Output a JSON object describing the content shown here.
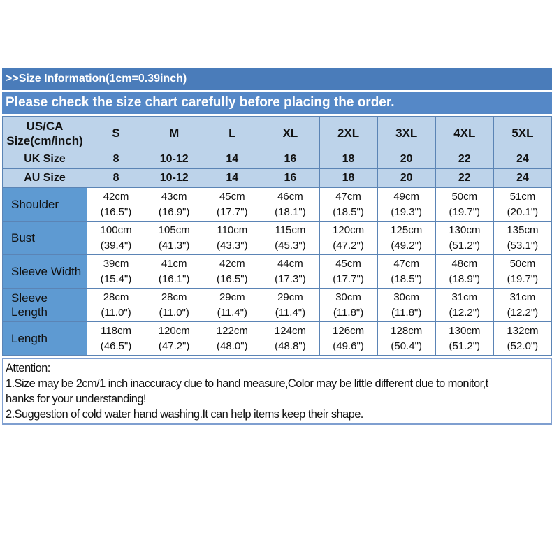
{
  "banners": {
    "title": ">>Size Information(1cm=0.39inch)",
    "subtitle": "Please check the size chart carefully before placing the order."
  },
  "table": {
    "corner_header": {
      "line1": "US/CA",
      "line2": "Size(cm/inch)"
    },
    "size_headers": [
      "S",
      "M",
      "L",
      "XL",
      "2XL",
      "3XL",
      "4XL",
      "5XL"
    ],
    "size_rows": [
      {
        "label": "UK Size",
        "values": [
          "8",
          "10-12",
          "14",
          "16",
          "18",
          "20",
          "22",
          "24"
        ]
      },
      {
        "label": "AU Size",
        "values": [
          "8",
          "10-12",
          "14",
          "16",
          "18",
          "20",
          "22",
          "24"
        ]
      }
    ],
    "measure_rows": [
      {
        "label": "Shoulder",
        "cells": [
          {
            "cm": "42cm",
            "in": "(16.5\")"
          },
          {
            "cm": "43cm",
            "in": "(16.9\")"
          },
          {
            "cm": "45cm",
            "in": "(17.7\")"
          },
          {
            "cm": "46cm",
            "in": "(18.1\")"
          },
          {
            "cm": "47cm",
            "in": "(18.5\")"
          },
          {
            "cm": "49cm",
            "in": "(19.3\")"
          },
          {
            "cm": "50cm",
            "in": "(19.7\")"
          },
          {
            "cm": "51cm",
            "in": "(20.1\")"
          }
        ]
      },
      {
        "label": "Bust",
        "cells": [
          {
            "cm": "100cm",
            "in": "(39.4\")"
          },
          {
            "cm": "105cm",
            "in": "(41.3\")"
          },
          {
            "cm": "110cm",
            "in": "(43.3\")"
          },
          {
            "cm": "115cm",
            "in": "(45.3\")"
          },
          {
            "cm": "120cm",
            "in": "(47.2\")"
          },
          {
            "cm": "125cm",
            "in": "(49.2\")"
          },
          {
            "cm": "130cm",
            "in": "(51.2\")"
          },
          {
            "cm": "135cm",
            "in": "(53.1\")"
          }
        ]
      },
      {
        "label": "Sleeve Width",
        "cells": [
          {
            "cm": "39cm",
            "in": "(15.4\")"
          },
          {
            "cm": "41cm",
            "in": "(16.1\")"
          },
          {
            "cm": "42cm",
            "in": "(16.5\")"
          },
          {
            "cm": "44cm",
            "in": "(17.3\")"
          },
          {
            "cm": "45cm",
            "in": "(17.7\")"
          },
          {
            "cm": "47cm",
            "in": "(18.5\")"
          },
          {
            "cm": "48cm",
            "in": "(18.9\")"
          },
          {
            "cm": "50cm",
            "in": "(19.7\")"
          }
        ]
      },
      {
        "label": "Sleeve Length",
        "cells": [
          {
            "cm": "28cm",
            "in": "(11.0\")"
          },
          {
            "cm": "28cm",
            "in": "(11.0\")"
          },
          {
            "cm": "29cm",
            "in": "(11.4\")"
          },
          {
            "cm": "29cm",
            "in": "(11.4\")"
          },
          {
            "cm": "30cm",
            "in": "(11.8\")"
          },
          {
            "cm": "30cm",
            "in": "(11.8\")"
          },
          {
            "cm": "31cm",
            "in": "(12.2\")"
          },
          {
            "cm": "31cm",
            "in": "(12.2\")"
          }
        ]
      },
      {
        "label": "Length",
        "cells": [
          {
            "cm": "118cm",
            "in": "(46.5\")"
          },
          {
            "cm": "120cm",
            "in": "(47.2\")"
          },
          {
            "cm": "122cm",
            "in": "(48.0\")"
          },
          {
            "cm": "124cm",
            "in": "(48.8\")"
          },
          {
            "cm": "126cm",
            "in": "(49.6\")"
          },
          {
            "cm": "128cm",
            "in": "(50.4\")"
          },
          {
            "cm": "130cm",
            "in": "(51.2\")"
          },
          {
            "cm": "132cm",
            "in": "(52.0\")"
          }
        ]
      }
    ]
  },
  "attention": {
    "lines": [
      "Attention:",
      "1.Size may be 2cm/1 inch inaccuracy due to hand measure,Color may be little different due to monitor,t",
      "hanks for your understanding!",
      "2.Suggestion of cold water hand washing.It can help items keep their shape."
    ]
  },
  "colors": {
    "banner_top_bg": "#4a7cba",
    "banner_bottom_bg": "#5588c7",
    "header_row_bg": "#bdd3ea",
    "label_column_bg": "#5e9ad2",
    "grid_border": "#5b84b5",
    "attention_border": "#7f9fd0"
  }
}
